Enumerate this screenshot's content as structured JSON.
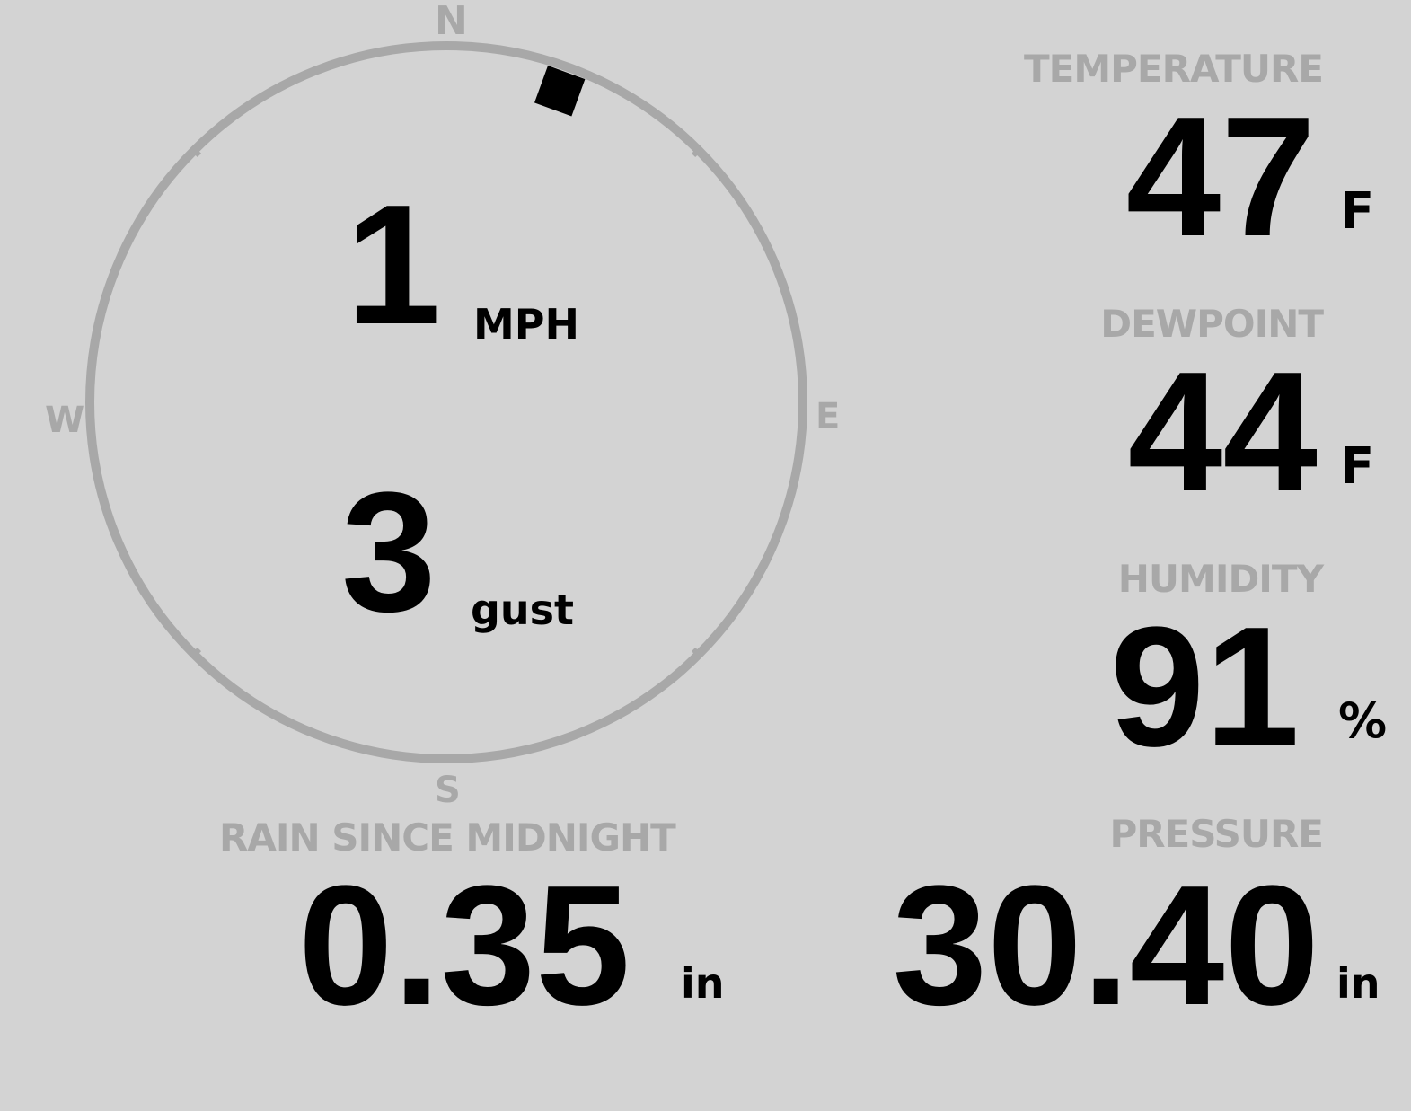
{
  "colors": {
    "background": "#d3d3d3",
    "muted": "#a8a8a8",
    "value": "#000000"
  },
  "wind": {
    "cardinals": {
      "n": "N",
      "e": "E",
      "s": "S",
      "w": "W"
    },
    "speed": "1",
    "speed_unit": "MPH",
    "gust": "3",
    "gust_unit": "gust",
    "direction_degrees": 20
  },
  "temperature": {
    "label": "TEMPERATURE",
    "value": "47",
    "unit": "F"
  },
  "dewpoint": {
    "label": "DEWPOINT",
    "value": "44",
    "unit": "F"
  },
  "humidity": {
    "label": "HUMIDITY",
    "value": "91",
    "unit": "%"
  },
  "rain": {
    "label": "RAIN SINCE MIDNIGHT",
    "value": "0.35",
    "unit": "in"
  },
  "pressure": {
    "label": "PRESSURE",
    "value": "30.40",
    "unit": "in"
  }
}
